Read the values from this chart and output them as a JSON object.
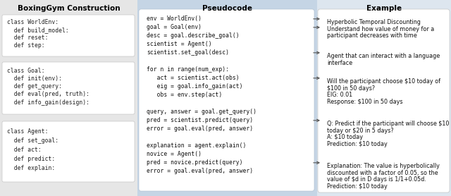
{
  "title_left": "BoxingGym Construction",
  "title_mid": "Pseudocode",
  "title_right": "Example",
  "bg_left": "#e6e6e6",
  "bg_mid": "#c5d5e5",
  "bg_right": "#dde6ef",
  "box_color": "#ffffff",
  "code_left": [
    [
      "class WorldEnv:",
      "  def build_model:",
      "  def reset:",
      "  def step:"
    ],
    [
      "class Goal:",
      "  def init(env):",
      "  def get_query:",
      "  def eval(pred, truth):",
      "  def info_gain(design):"
    ],
    [
      "class Agent:",
      "  def set_goal:",
      "  def act:",
      "  def predict:",
      "  def explain:"
    ]
  ],
  "code_mid": [
    "env = WorldEnv()",
    "goal = Goal(env)",
    "desc = goal.describe_goal()",
    "scientist = Agent()",
    "scientist.set_goal(desc)",
    "",
    "for n in range(num_exp):",
    "   act = scientist.act(obs)",
    "   eig = goal.info_gain(act)",
    "   obs = env.step(act)",
    "",
    "query, answer = goal.get_query()",
    "pred = scientist.predict(query)",
    "error = goal.eval(pred, answer)",
    "",
    "explanation = agent.explain()",
    "novice = Agent()",
    "pred = novice.predict(query)",
    "error = goal.eval(pred, answer)"
  ],
  "arrow_line_indices": [
    0,
    1,
    4,
    7,
    12,
    17
  ],
  "example_blocks": [
    [
      "Hyperbolic Temporal Discounting",
      "Understand how value of money for a",
      "participant decreases with time"
    ],
    [
      "Agent that can interact with a language",
      "interface"
    ],
    [
      "Will the participant choose $10 today of",
      "$100 in 50 days?",
      "EIG: 0.01",
      "Response: $100 in 50 days"
    ],
    [
      "Q: Predict if the participant will choose $10",
      "today or $20 in 5 days?",
      "A: $10 today",
      "Prediction: $10 today"
    ],
    [
      "Explanation: The value is hyperbolically",
      "discounted with a factor of 0.05, so the",
      "value of $d in D days is 1/1+0.05d.",
      "Prediction: $10 today"
    ]
  ]
}
